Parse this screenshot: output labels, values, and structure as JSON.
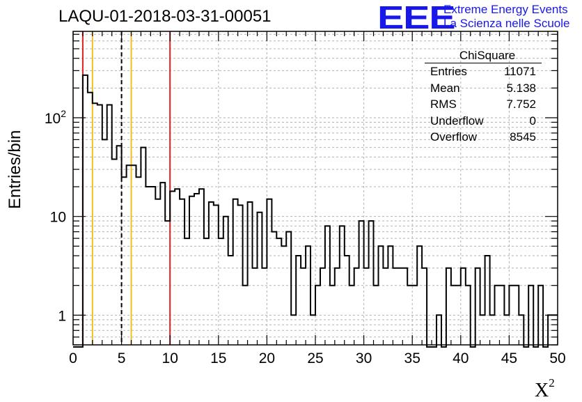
{
  "header": {
    "title": "LAQU-01-2018-03-31-00051",
    "logo_text": "EEE",
    "logo_line1": "Extreme Energy Events",
    "logo_line2": "La Scienza nelle Scuole"
  },
  "stats": {
    "title": "ChiSquare",
    "rows": [
      {
        "name": "Entries",
        "value": "11071"
      },
      {
        "name": "Mean",
        "value": "5.138"
      },
      {
        "name": "RMS",
        "value": "7.752"
      },
      {
        "name": "Underflow",
        "value": "0"
      },
      {
        "name": "Overflow",
        "value": "8545"
      }
    ]
  },
  "colors": {
    "red": "#e02020",
    "yellow": "#f0c020",
    "black": "#000000",
    "grid": "#b0b0b0",
    "blue": "#1818e8"
  },
  "chart_data": {
    "type": "histogram",
    "title": "LAQU-01-2018-03-31-00051",
    "xlabel": "X",
    "xlabel_sup": "2",
    "ylabel": "Entries/bin",
    "yscale": "log",
    "xlim": [
      0,
      50
    ],
    "ylim": [
      0.5,
      750
    ],
    "bin_width": 0.5,
    "x_ticks": [
      0,
      5,
      10,
      15,
      20,
      25,
      30,
      35,
      40,
      45,
      50
    ],
    "x_tick_labels": [
      "0",
      "5",
      "10",
      "15",
      "20",
      "25",
      "30",
      "35",
      "40",
      "45",
      "50"
    ],
    "y_ticks": [
      {
        "value": 1,
        "base": "1",
        "exp": ""
      },
      {
        "value": 10,
        "base": "10",
        "exp": ""
      },
      {
        "value": 100,
        "base": "10",
        "exp": "2"
      }
    ],
    "grid": true,
    "vertical_lines": [
      {
        "x": 1,
        "color": "red",
        "style": "solid"
      },
      {
        "x": 2,
        "color": "yellow",
        "style": "solid"
      },
      {
        "x": 5,
        "color": "black",
        "style": "dashed"
      },
      {
        "x": 6,
        "color": "yellow",
        "style": "solid"
      },
      {
        "x": 10,
        "color": "red",
        "style": "solid"
      }
    ],
    "values": [
      0,
      0,
      270,
      180,
      140,
      135,
      60,
      135,
      38,
      52,
      25,
      33,
      33,
      25,
      50,
      20,
      20,
      15,
      22,
      9,
      18,
      19,
      15,
      6,
      16,
      17,
      19,
      6,
      14,
      13,
      6,
      10,
      4,
      15,
      13,
      2,
      14,
      3,
      11,
      3,
      15,
      7,
      6,
      5,
      7,
      1,
      4,
      3,
      5,
      1,
      2,
      3,
      8,
      2,
      3,
      8,
      4,
      2,
      3,
      9,
      3,
      9,
      2,
      5,
      3,
      5,
      3,
      3,
      3,
      2,
      2,
      5,
      3,
      0,
      0,
      1,
      0,
      3,
      2,
      2,
      3,
      2,
      0,
      3,
      1,
      4,
      1,
      2,
      2,
      1,
      2,
      2,
      1,
      0,
      2,
      0,
      2,
      0,
      1,
      1
    ]
  }
}
